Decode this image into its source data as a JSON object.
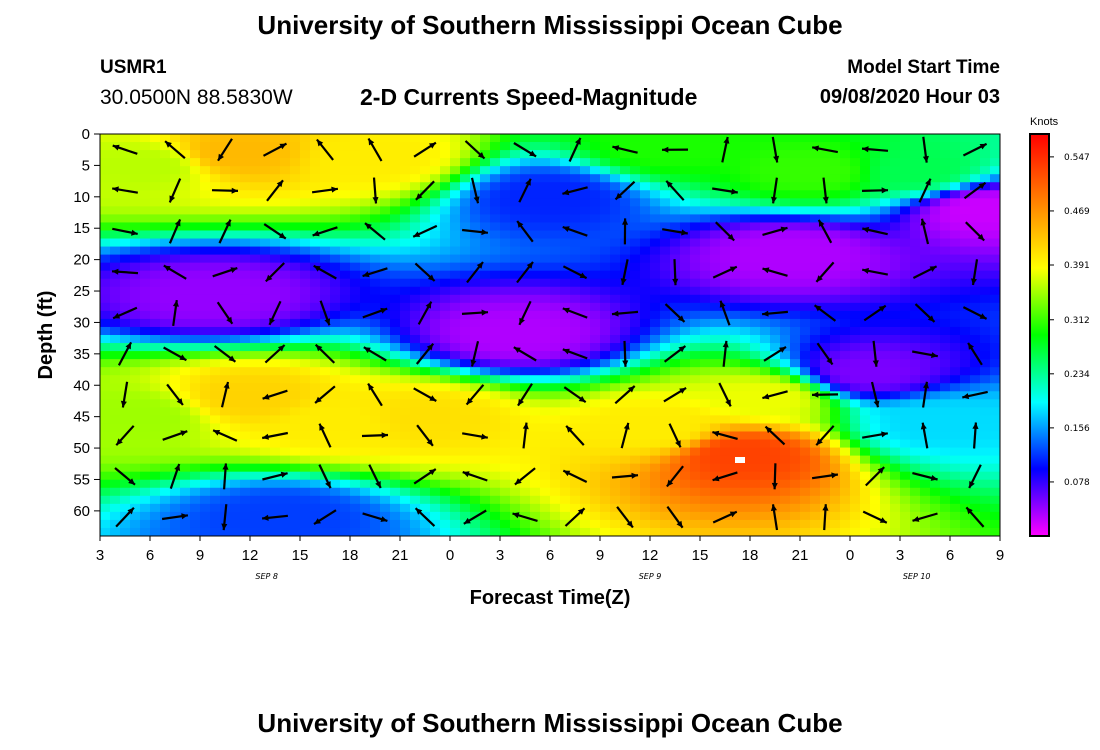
{
  "header": {
    "title_top": "University of Southern Mississippi Ocean Cube",
    "title_bottom": "University of Southern Mississippi Ocean Cube",
    "station_name": "USMR1",
    "station_coords": "30.0500N 88.5830W",
    "subtitle": "2-D Currents Speed-Magnitude",
    "model_start_label": "Model Start Time",
    "model_start_value": "09/08/2020 Hour 03"
  },
  "chart_data": {
    "type": "heatmap",
    "title": "2-D Currents Speed-Magnitude",
    "xlabel": "Forecast Time(Z)",
    "ylabel": "Depth (ft)",
    "x_ticks": [
      "3",
      "6",
      "9",
      "12",
      "15",
      "18",
      "21",
      "0",
      "3",
      "6",
      "9",
      "12",
      "15",
      "18",
      "21",
      "0",
      "3",
      "6",
      "9"
    ],
    "x_range_hours": [
      0,
      54
    ],
    "date_labels": [
      {
        "label": "SEP 8",
        "hour": 10
      },
      {
        "label": "SEP 9",
        "hour": 33
      },
      {
        "label": "SEP 10",
        "hour": 49
      }
    ],
    "y_ticks": [
      0,
      5,
      10,
      15,
      20,
      25,
      30,
      35,
      40,
      45,
      50,
      55,
      60
    ],
    "y_range": [
      0,
      64
    ],
    "y_inverted": true,
    "colorbar": {
      "unit": "Knots",
      "min": 0,
      "max": 0.58,
      "tick_values": [
        0.547,
        0.469,
        0.391,
        0.312,
        0.234,
        0.156,
        0.078
      ],
      "colors": [
        "#ff00ff",
        "#0000ff",
        "#00ffff",
        "#00ff00",
        "#ffff00",
        "#ff8000",
        "#ff0000"
      ]
    },
    "speed_field": [
      {
        "t": 3,
        "d": 5,
        "v": 0.36
      },
      {
        "t": 8,
        "d": 3,
        "v": 0.44
      },
      {
        "t": 16.5,
        "d": 4,
        "v": 0.4
      },
      {
        "t": 34,
        "d": 2,
        "v": 0.3
      },
      {
        "t": 43,
        "d": 6,
        "v": 0.31
      },
      {
        "t": 49,
        "d": 6,
        "v": 0.26
      },
      {
        "t": 9,
        "d": 42,
        "v": 0.42
      },
      {
        "t": 14,
        "d": 46,
        "v": 0.4
      },
      {
        "t": 19.5,
        "d": 45,
        "v": 0.41
      },
      {
        "t": 2.5,
        "d": 45,
        "v": 0.35
      },
      {
        "t": 38.5,
        "d": 51,
        "v": 0.53
      },
      {
        "t": 33.5,
        "d": 47,
        "v": 0.4
      },
      {
        "t": 40,
        "d": 42,
        "v": 0.38
      },
      {
        "t": 50,
        "d": 46,
        "v": 0.18
      },
      {
        "t": 7,
        "d": 26,
        "v": 0.04
      },
      {
        "t": 25,
        "d": 32,
        "v": 0.03
      },
      {
        "t": 41.5,
        "d": 19,
        "v": 0.03
      },
      {
        "t": 53,
        "d": 12,
        "v": 0.02
      },
      {
        "t": 46,
        "d": 38,
        "v": 0.05
      },
      {
        "t": 27,
        "d": 10,
        "v": 0.11
      },
      {
        "t": 11,
        "d": 61,
        "v": 0.12
      }
    ]
  }
}
